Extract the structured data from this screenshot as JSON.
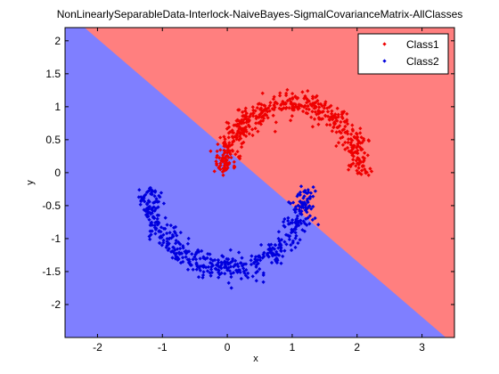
{
  "chart_data": {
    "type": "scatter",
    "title": "NonLinearlySeparableData-Interlock-NaiveBayes-SigmalCovarianceMatrix-AllClasses",
    "xlabel": "x",
    "ylabel": "y",
    "xlim": [
      -2.5,
      3.5
    ],
    "ylim": [
      -2.5,
      2.2
    ],
    "xticks": [
      "-2",
      "-1",
      "0",
      "1",
      "2",
      "3"
    ],
    "yticks": [
      "2",
      "1.5",
      "1",
      "0.5",
      "0",
      "-0.5",
      "-1",
      "-1.5",
      "-2"
    ],
    "xtick_values": [
      -2,
      -1,
      0,
      1,
      2,
      3
    ],
    "ytick_values": [
      2,
      1.5,
      1,
      0.5,
      0,
      -0.5,
      -1,
      -1.5,
      -2
    ],
    "grid": false,
    "legend_position": "top-right",
    "decision_boundary": {
      "description_points": [
        [
          -2.2,
          2.2
        ],
        [
          3.4,
          -2.5
        ]
      ],
      "region_colors": {
        "Class1": "#ff7f7f",
        "Class2": "#7f7fff"
      }
    },
    "series": [
      {
        "name": "Class1",
        "color": "#ee0000",
        "shape": "upper-arc",
        "center": [
          1.0,
          0.0
        ],
        "radius": 1.05,
        "spread": 0.09,
        "arc_start_deg": 0,
        "arc_end_deg": 180,
        "count": 520
      },
      {
        "name": "Class2",
        "color": "#0000dd",
        "shape": "lower-arc",
        "center": [
          0.0,
          -0.25
        ],
        "radius": 1.2,
        "spread": 0.09,
        "arc_start_deg": 180,
        "arc_end_deg": 360,
        "count": 520
      }
    ]
  }
}
